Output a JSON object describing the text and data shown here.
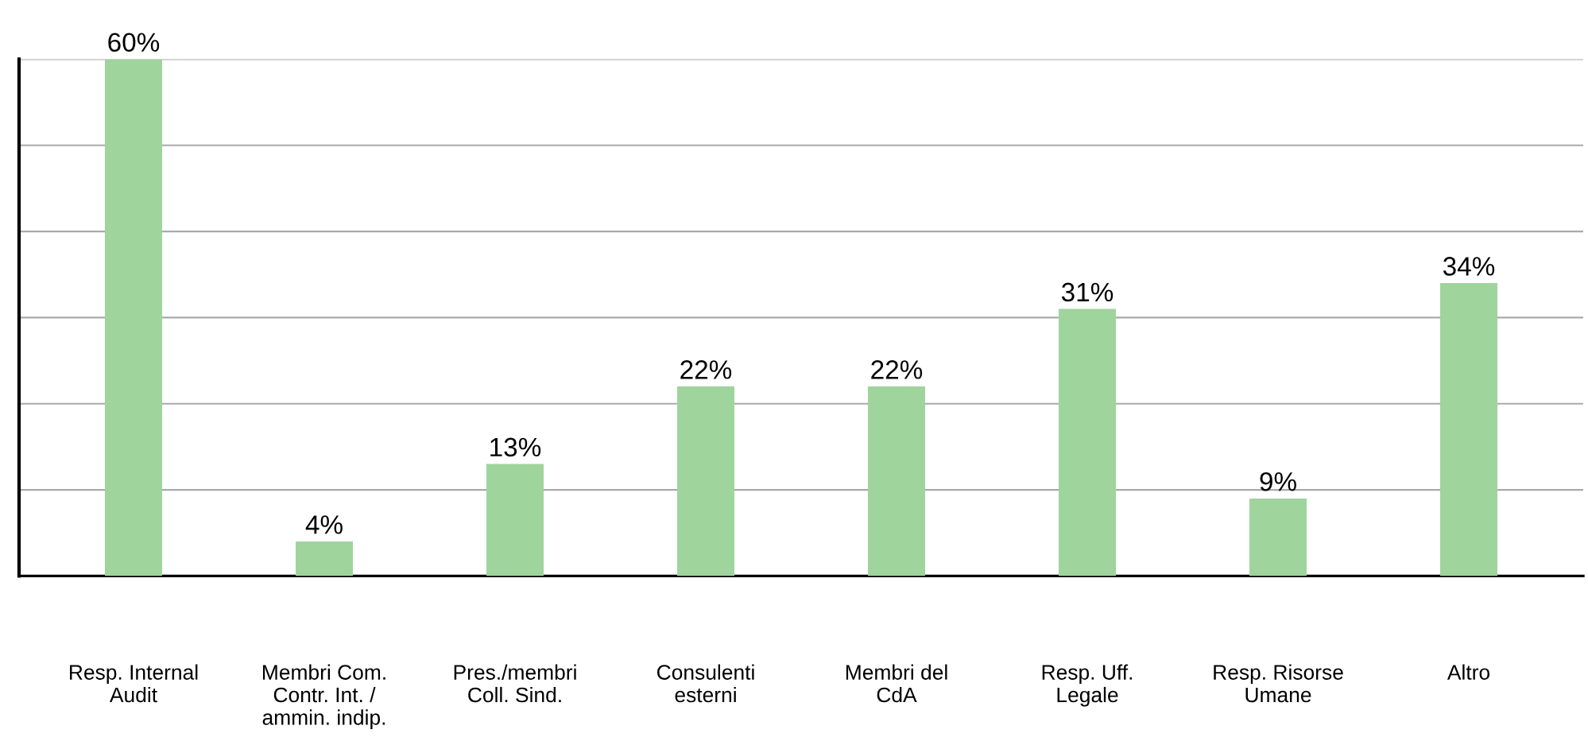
{
  "chart_data": {
    "type": "bar",
    "categories": [
      "Resp. Internal\nAudit",
      "Membri Com.\nContr. Int. /\nammin. indip.",
      "Pres./membri\nColl. Sind.",
      "Consulenti\nesterni",
      "Membri del\nCdA",
      "Resp. Uff.\nLegale",
      "Resp. Risorse\nUmane",
      "Altro"
    ],
    "values": [
      60,
      4,
      13,
      22,
      22,
      31,
      9,
      34
    ],
    "value_labels": [
      "60%",
      "4%",
      "13%",
      "22%",
      "22%",
      "31%",
      "9%",
      "34%"
    ],
    "color": "#9fd49c",
    "ylim": [
      0,
      60
    ],
    "yticks": [
      {
        "value": 0,
        "label": null
      },
      {
        "value": 10,
        "label": null
      },
      {
        "value": 20,
        "label": null
      },
      {
        "value": 30,
        "label": null
      },
      {
        "value": 40,
        "label": null
      },
      {
        "value": 50,
        "label": null
      },
      {
        "value": 60,
        "label": null
      }
    ],
    "tick_labels": "x",
    "grid": "y"
  }
}
